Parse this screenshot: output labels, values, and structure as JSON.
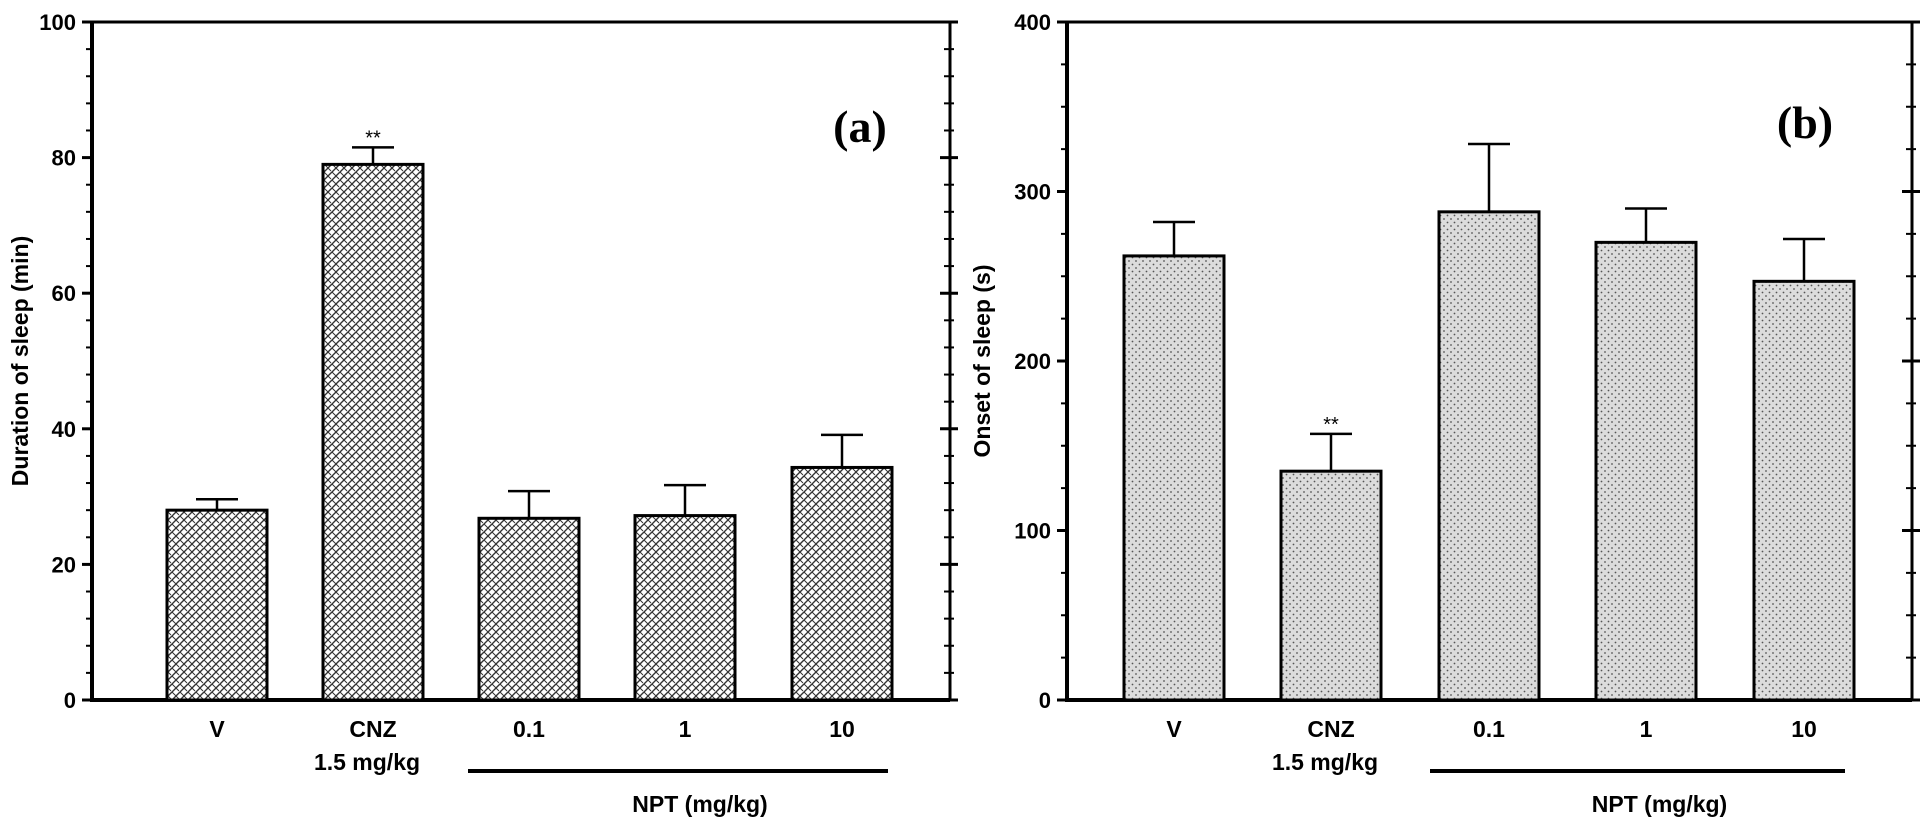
{
  "chart_data": [
    {
      "type": "bar",
      "panel_label": "(a)",
      "title": "",
      "xlabel": "",
      "ylabel": "Duration of sleep (min)",
      "ylim": [
        0,
        100
      ],
      "yticks": [
        "0",
        "20",
        "40",
        "60",
        "80",
        "100"
      ],
      "categories": [
        "V",
        "CNZ",
        "0.1",
        "1",
        "10"
      ],
      "category_sublabels": [
        "",
        "1.5 mg/kg",
        "",
        "",
        ""
      ],
      "group_label": "NPT (mg/kg)",
      "series": [
        {
          "name": "Duration of sleep",
          "values": [
            28,
            79,
            26.8,
            27.2,
            34.3
          ],
          "errors": [
            1.6,
            2.5,
            4.0,
            4.5,
            4.8
          ],
          "significance": [
            "",
            "**",
            "",
            "",
            ""
          ]
        }
      ],
      "fill_pattern": "crosshatch"
    },
    {
      "type": "bar",
      "panel_label": "(b)",
      "title": "",
      "xlabel": "",
      "ylabel": "Onset of sleep (s)",
      "ylim": [
        0,
        400
      ],
      "yticks": [
        "0",
        "100",
        "200",
        "300",
        "400"
      ],
      "categories": [
        "V",
        "CNZ",
        "0.1",
        "1",
        "10"
      ],
      "category_sublabels": [
        "",
        "1.5 mg/kg",
        "",
        "",
        ""
      ],
      "group_label": "NPT (mg/kg)",
      "series": [
        {
          "name": "Onset of sleep",
          "values": [
            262,
            135,
            288,
            270,
            247
          ],
          "errors": [
            20,
            22,
            40,
            20,
            25
          ],
          "significance": [
            "",
            "**",
            "",
            "",
            ""
          ]
        }
      ],
      "fill_pattern": "dots"
    }
  ],
  "colors": {
    "axis": "#000000",
    "bar_fill_a": "#ffffff",
    "bar_fill_b": "#dcdcdc"
  }
}
